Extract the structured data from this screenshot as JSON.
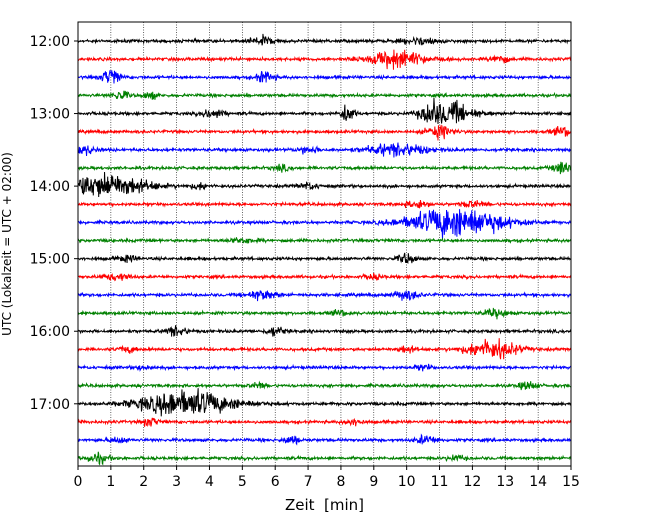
{
  "chart_data": {
    "type": "line",
    "subtype": "helicorder",
    "xlabel": "Zeit  [min]",
    "ylabel": "UTC (Lokalzeit = UTC + 02:00)",
    "xlim": [
      0,
      15
    ],
    "x_ticks": [
      "0",
      "1",
      "2",
      "3",
      "4",
      "5",
      "6",
      "7",
      "8",
      "9",
      "10",
      "11",
      "12",
      "13",
      "14",
      "15"
    ],
    "y_ticks": [
      "12:00",
      "13:00",
      "14:00",
      "15:00",
      "16:00",
      "17:00"
    ],
    "grid": "vertical dotted at each minute",
    "trace_interval_minutes": 15,
    "trace_colors": [
      "#000000",
      "#ff0000",
      "#0000ff",
      "#008000"
    ],
    "traces": [
      {
        "start": "12:00",
        "color": "#000000",
        "events": [
          {
            "t": 5.6,
            "amp": 1.4,
            "dur": 0.5
          },
          {
            "t": 10.4,
            "amp": 1.0,
            "dur": 0.8
          }
        ]
      },
      {
        "start": "12:15",
        "color": "#ff0000",
        "events": [
          {
            "t": 9.7,
            "amp": 2.6,
            "dur": 1.3
          },
          {
            "t": 12.8,
            "amp": 1.3,
            "dur": 0.4
          }
        ]
      },
      {
        "start": "12:30",
        "color": "#0000ff",
        "events": [
          {
            "t": 1.0,
            "amp": 2.6,
            "dur": 0.4
          },
          {
            "t": 5.7,
            "amp": 1.6,
            "dur": 0.4
          }
        ]
      },
      {
        "start": "12:45",
        "color": "#008000",
        "events": [
          {
            "t": 1.3,
            "amp": 1.3,
            "dur": 0.4
          },
          {
            "t": 2.2,
            "amp": 1.1,
            "dur": 0.3
          }
        ]
      },
      {
        "start": "13:00",
        "color": "#000000",
        "events": [
          {
            "t": 4.1,
            "amp": 1.4,
            "dur": 0.5
          },
          {
            "t": 8.2,
            "amp": 3.0,
            "dur": 0.3
          },
          {
            "t": 10.7,
            "amp": 2.6,
            "dur": 0.4
          },
          {
            "t": 11.3,
            "amp": 3.2,
            "dur": 1.1
          }
        ]
      },
      {
        "start": "13:15",
        "color": "#ff0000",
        "events": [
          {
            "t": 11.0,
            "amp": 1.8,
            "dur": 0.6
          },
          {
            "t": 14.8,
            "amp": 1.4,
            "dur": 0.5
          }
        ]
      },
      {
        "start": "13:30",
        "color": "#0000ff",
        "events": [
          {
            "t": 0.2,
            "amp": 1.4,
            "dur": 0.5
          },
          {
            "t": 7.0,
            "amp": 1.0,
            "dur": 0.5
          },
          {
            "t": 9.7,
            "amp": 1.8,
            "dur": 1.4
          }
        ]
      },
      {
        "start": "13:45",
        "color": "#008000",
        "events": [
          {
            "t": 6.2,
            "amp": 0.8,
            "dur": 0.4
          },
          {
            "t": 14.8,
            "amp": 2.0,
            "dur": 0.5
          }
        ]
      },
      {
        "start": "14:00",
        "color": "#000000",
        "events": [
          {
            "t": 0.8,
            "amp": 3.5,
            "dur": 2.0
          },
          {
            "t": 3.7,
            "amp": 0.9,
            "dur": 0.4
          },
          {
            "t": 7.0,
            "amp": 0.9,
            "dur": 0.5
          }
        ]
      },
      {
        "start": "14:15",
        "color": "#ff0000",
        "events": [
          {
            "t": 10.3,
            "amp": 1.2,
            "dur": 0.5
          },
          {
            "t": 12.0,
            "amp": 1.0,
            "dur": 0.5
          }
        ]
      },
      {
        "start": "14:30",
        "color": "#0000ff",
        "events": [
          {
            "t": 11.5,
            "amp": 4.5,
            "dur": 2.2
          }
        ]
      },
      {
        "start": "14:45",
        "color": "#008000",
        "events": [
          {
            "t": 5.0,
            "amp": 0.8,
            "dur": 0.6
          }
        ]
      },
      {
        "start": "15:00",
        "color": "#000000",
        "events": [
          {
            "t": 1.5,
            "amp": 0.9,
            "dur": 0.5
          },
          {
            "t": 10.0,
            "amp": 1.6,
            "dur": 0.4
          }
        ]
      },
      {
        "start": "15:15",
        "color": "#ff0000",
        "events": [
          {
            "t": 1.2,
            "amp": 1.0,
            "dur": 0.6
          },
          {
            "t": 9.0,
            "amp": 0.8,
            "dur": 0.4
          }
        ]
      },
      {
        "start": "15:30",
        "color": "#0000ff",
        "events": [
          {
            "t": 5.6,
            "amp": 1.3,
            "dur": 0.7
          },
          {
            "t": 10.0,
            "amp": 1.4,
            "dur": 0.6
          }
        ]
      },
      {
        "start": "15:45",
        "color": "#008000",
        "events": [
          {
            "t": 8.0,
            "amp": 0.8,
            "dur": 0.4
          },
          {
            "t": 12.7,
            "amp": 1.2,
            "dur": 0.5
          }
        ]
      },
      {
        "start": "16:00",
        "color": "#000000",
        "events": [
          {
            "t": 3.0,
            "amp": 1.4,
            "dur": 0.5
          },
          {
            "t": 6.0,
            "amp": 1.4,
            "dur": 0.4
          }
        ]
      },
      {
        "start": "16:15",
        "color": "#ff0000",
        "events": [
          {
            "t": 1.5,
            "amp": 0.9,
            "dur": 0.4
          },
          {
            "t": 10.0,
            "amp": 1.0,
            "dur": 0.4
          },
          {
            "t": 12.6,
            "amp": 2.8,
            "dur": 1.2
          }
        ]
      },
      {
        "start": "16:30",
        "color": "#0000ff",
        "events": [
          {
            "t": 2.0,
            "amp": 0.7,
            "dur": 0.4
          },
          {
            "t": 10.5,
            "amp": 0.8,
            "dur": 0.4
          }
        ]
      },
      {
        "start": "16:45",
        "color": "#008000",
        "events": [
          {
            "t": 5.5,
            "amp": 0.8,
            "dur": 0.4
          },
          {
            "t": 13.7,
            "amp": 1.2,
            "dur": 0.4
          }
        ]
      },
      {
        "start": "17:00",
        "color": "#000000",
        "events": [
          {
            "t": 3.3,
            "amp": 3.8,
            "dur": 2.2
          }
        ]
      },
      {
        "start": "17:15",
        "color": "#ff0000",
        "events": [
          {
            "t": 2.2,
            "amp": 1.2,
            "dur": 0.4
          },
          {
            "t": 8.4,
            "amp": 1.0,
            "dur": 0.4
          }
        ]
      },
      {
        "start": "17:30",
        "color": "#0000ff",
        "events": [
          {
            "t": 1.2,
            "amp": 0.9,
            "dur": 0.4
          },
          {
            "t": 6.5,
            "amp": 1.2,
            "dur": 0.4
          },
          {
            "t": 10.6,
            "amp": 1.2,
            "dur": 0.5
          }
        ]
      },
      {
        "start": "17:45",
        "color": "#008000",
        "events": [
          {
            "t": 0.6,
            "amp": 1.4,
            "dur": 0.5
          },
          {
            "t": 11.5,
            "amp": 0.8,
            "dur": 0.4
          }
        ]
      }
    ]
  }
}
